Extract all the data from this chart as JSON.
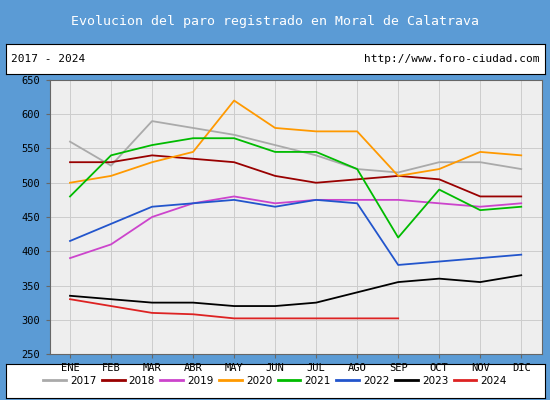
{
  "title": "Evolucion del paro registrado en Moral de Calatrava",
  "title_bgcolor": "#5b9bd5",
  "title_color": "white",
  "subtitle_left": "2017 - 2024",
  "subtitle_right": "http://www.foro-ciudad.com",
  "months": [
    "ENE",
    "FEB",
    "MAR",
    "ABR",
    "MAY",
    "JUN",
    "JUL",
    "AGO",
    "SEP",
    "OCT",
    "NOV",
    "DIC"
  ],
  "ylim": [
    250,
    650
  ],
  "yticks": [
    250,
    300,
    350,
    400,
    450,
    500,
    550,
    600,
    650
  ],
  "series": {
    "2017": {
      "color": "#aaaaaa",
      "values": [
        560,
        525,
        590,
        580,
        570,
        555,
        540,
        520,
        515,
        530,
        530,
        520
      ]
    },
    "2018": {
      "color": "#990000",
      "values": [
        530,
        530,
        540,
        535,
        530,
        510,
        500,
        505,
        510,
        505,
        480,
        480
      ]
    },
    "2019": {
      "color": "#cc44cc",
      "values": [
        390,
        410,
        450,
        470,
        480,
        470,
        475,
        475,
        475,
        470,
        465,
        470
      ]
    },
    "2020": {
      "color": "#ff9900",
      "values": [
        500,
        510,
        530,
        545,
        620,
        580,
        575,
        575,
        510,
        520,
        545,
        540
      ]
    },
    "2021": {
      "color": "#00bb00",
      "values": [
        480,
        540,
        555,
        565,
        565,
        545,
        545,
        520,
        420,
        490,
        460,
        465
      ]
    },
    "2022": {
      "color": "#2255cc",
      "values": [
        415,
        440,
        465,
        470,
        475,
        465,
        475,
        470,
        380,
        385,
        390,
        395
      ]
    },
    "2023": {
      "color": "#000000",
      "values": [
        335,
        330,
        325,
        325,
        320,
        320,
        325,
        340,
        355,
        360,
        355,
        365
      ]
    },
    "2024": {
      "color": "#dd2222",
      "values": [
        330,
        320,
        310,
        308,
        302,
        302,
        302,
        302,
        302,
        null,
        null,
        null
      ]
    }
  }
}
